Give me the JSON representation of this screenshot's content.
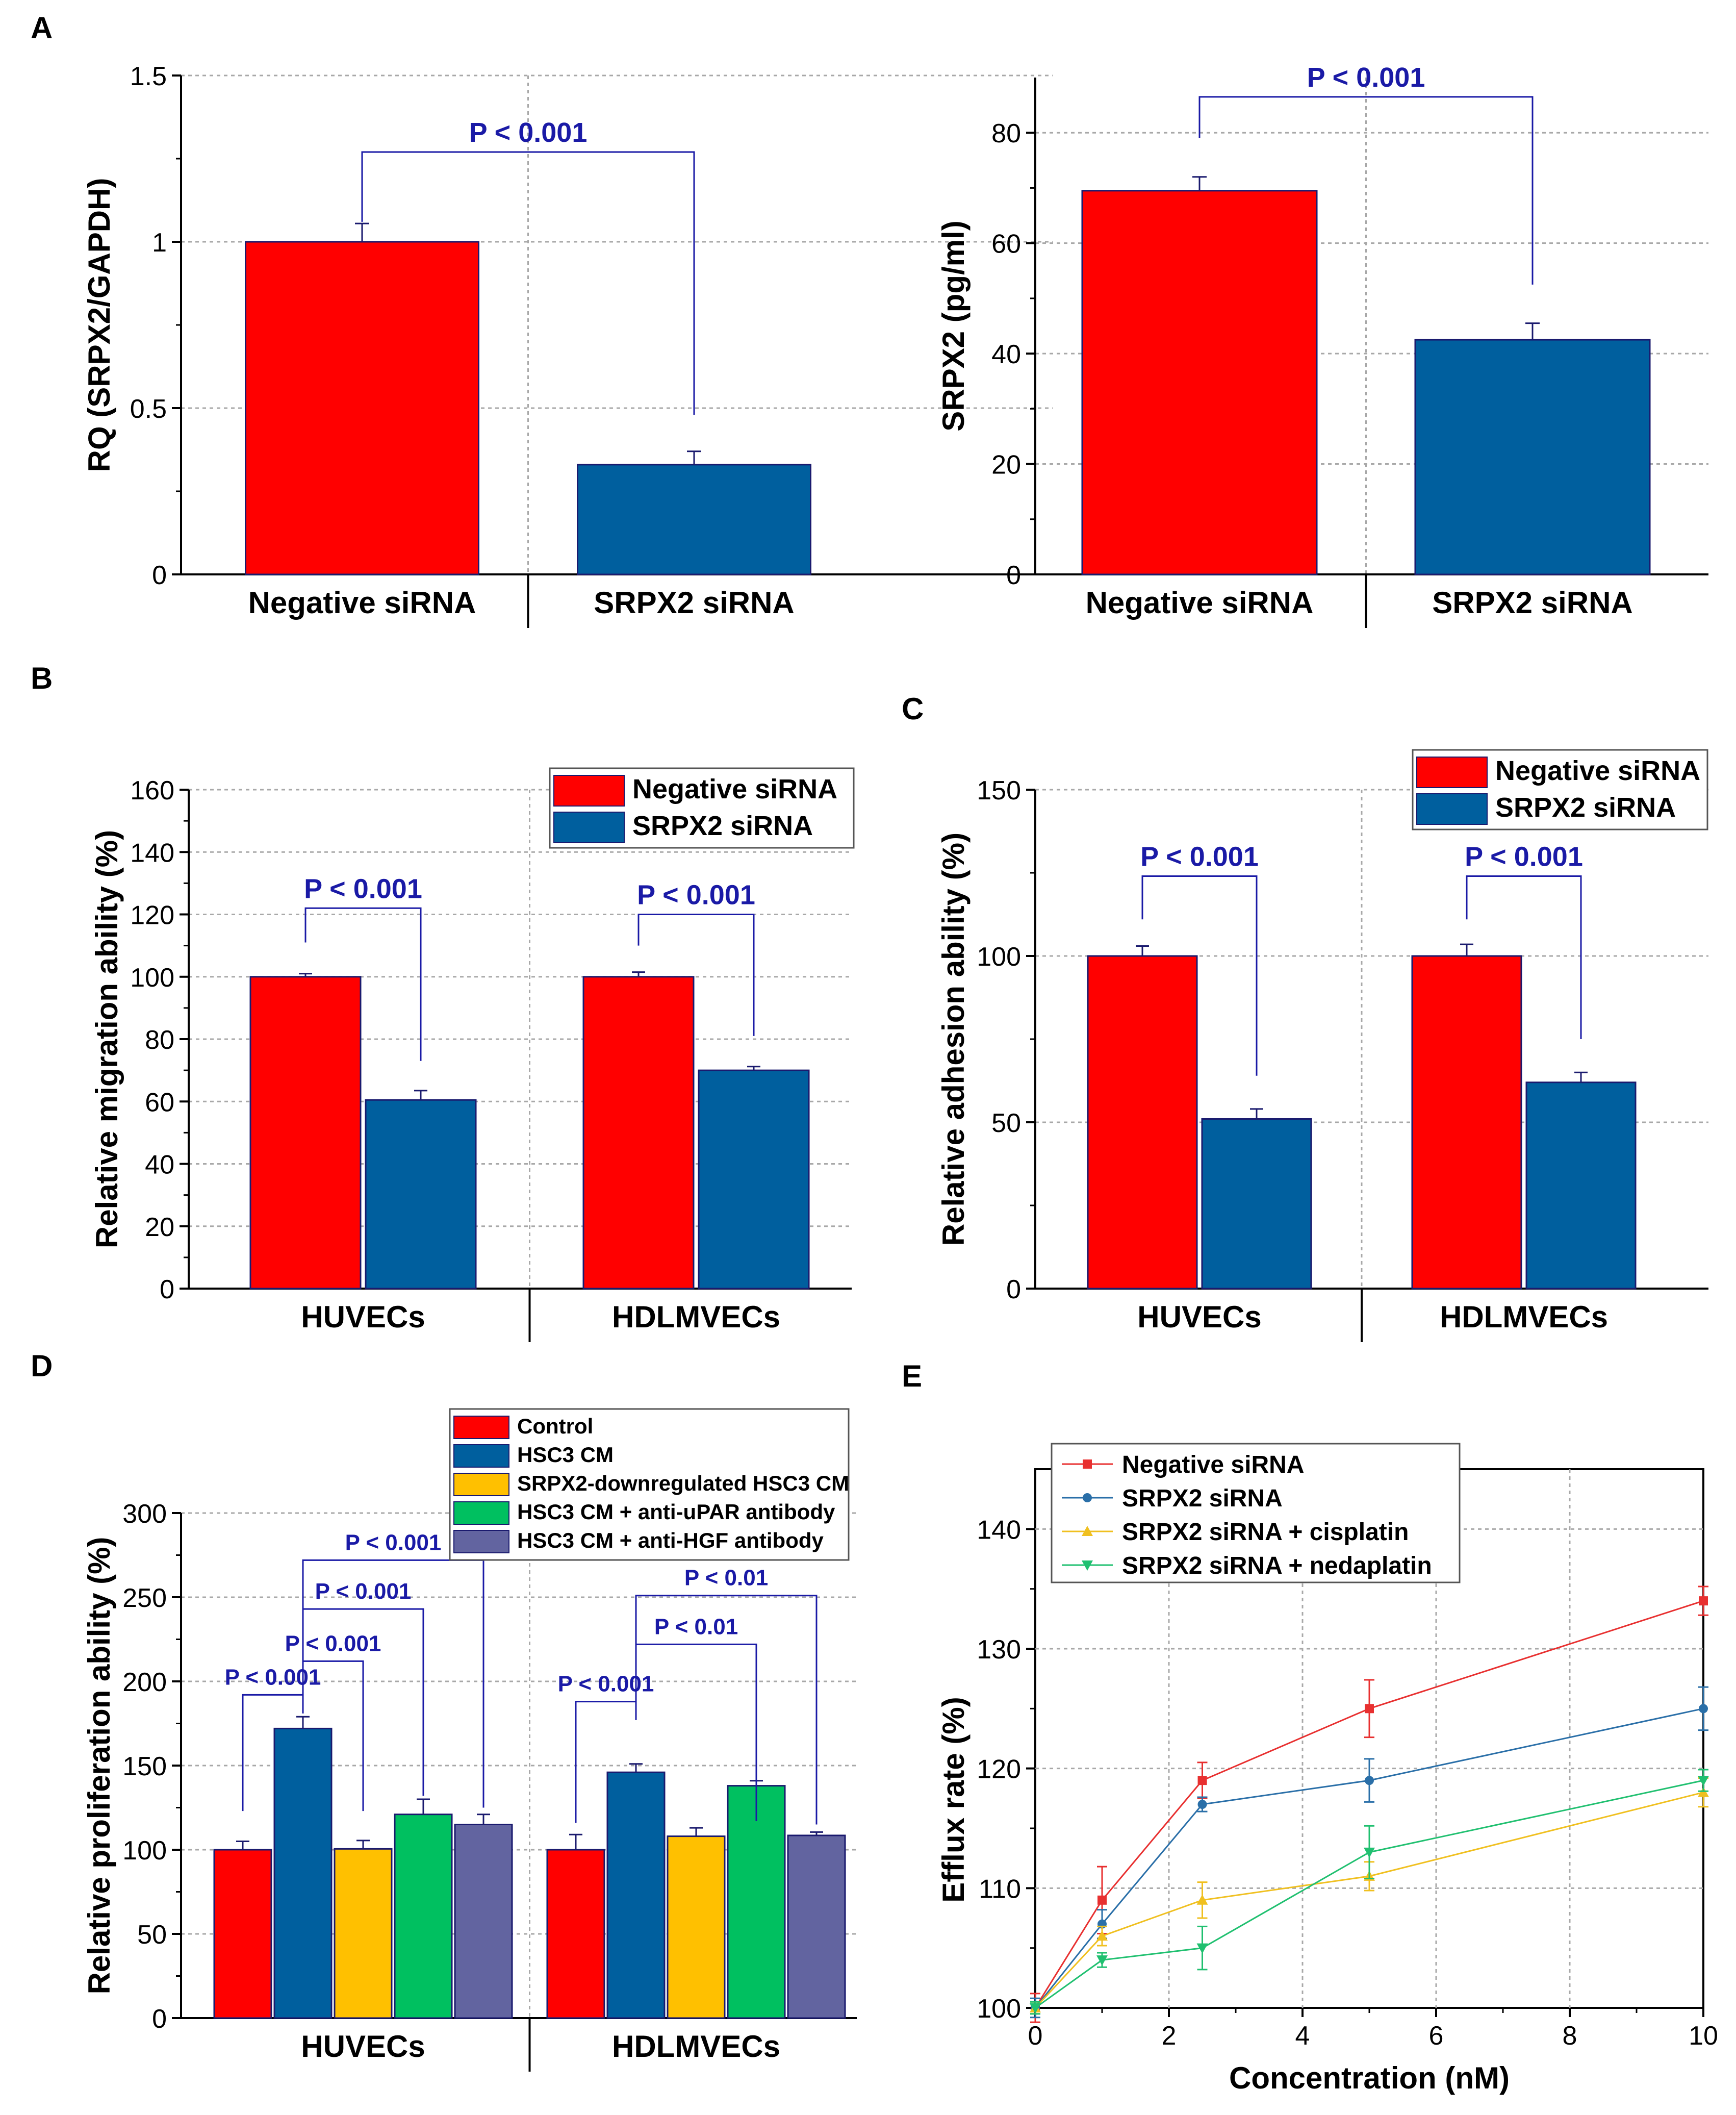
{
  "colors": {
    "red": "#ff0000",
    "blue": "#005f9e",
    "yellow": "#ffc000",
    "green": "#00c060",
    "purple": "#6264a0",
    "annot": "#1a1aa6",
    "axis": "#000000",
    "grid": "#a8a8a8",
    "line_red": "#e83030",
    "line_blue": "#2a6fa8",
    "line_yellow": "#f0c020",
    "line_green": "#20c070"
  },
  "chart_data": [
    {
      "id": "A1",
      "panel_label": "A",
      "type": "bar",
      "categories": [
        "Negative siRNA",
        "SRPX2 siRNA"
      ],
      "series": [
        {
          "name": "",
          "values": [
            1.0,
            0.33
          ],
          "errors": [
            0.055,
            0.04
          ],
          "colors": [
            "red",
            "blue"
          ]
        }
      ],
      "ylabel": "RQ (SRPX2/GAPDH)",
      "xlabel": "",
      "ylim": [
        0,
        1.5
      ],
      "yticks": [
        0,
        0.5,
        1,
        1.5
      ],
      "ytick_labels": [
        "0",
        "0.5",
        "1",
        "1.5"
      ],
      "grid": true,
      "legend": null,
      "annotations": [
        {
          "text": "P < 0.001",
          "from": 0,
          "to": 1,
          "level": 1.27,
          "left_end": 1.06,
          "right_end": 0.48
        }
      ]
    },
    {
      "id": "A2",
      "panel_label": "",
      "type": "bar",
      "categories": [
        "Negative siRNA",
        "SRPX2 siRNA"
      ],
      "series": [
        {
          "name": "",
          "values": [
            69.5,
            42.5
          ],
          "errors": [
            2.5,
            3.0
          ],
          "colors": [
            "red",
            "blue"
          ]
        }
      ],
      "ylabel": "SRPX2 (pg/ml)",
      "xlabel": "",
      "ylim": [
        0,
        90
      ],
      "yticks": [
        0,
        20,
        40,
        60,
        80
      ],
      "ytick_labels": [
        "0",
        "20",
        "40",
        "60",
        "80"
      ],
      "grid": true,
      "legend": null,
      "annotations": [
        {
          "text": "P < 0.001",
          "from": 0,
          "to": 1,
          "level": 86.5,
          "left_end": 79,
          "right_end": 52.5
        }
      ]
    },
    {
      "id": "B",
      "panel_label": "B",
      "type": "bar",
      "categories": [
        "HUVECs",
        "HDLMVECs"
      ],
      "series": [
        {
          "name": "Negative siRNA",
          "values": [
            100,
            100
          ],
          "errors": [
            1.0,
            1.5
          ],
          "color": "red"
        },
        {
          "name": "SRPX2 siRNA",
          "values": [
            60.5,
            70
          ],
          "errors": [
            3.0,
            1.2
          ],
          "color": "blue"
        }
      ],
      "ylabel": "Relative migration ability (%)",
      "xlabel": "",
      "ylim": [
        0,
        160
      ],
      "yticks": [
        0,
        20,
        40,
        60,
        80,
        100,
        120,
        140,
        160
      ],
      "ytick_labels": [
        "0",
        "20",
        "40",
        "60",
        "80",
        "100",
        "120",
        "140",
        "160"
      ],
      "grid": true,
      "legend": "top-right",
      "annotations": [
        {
          "text": "P < 0.001",
          "group": 0,
          "level": 122,
          "left_end": 111,
          "right_end": 73
        },
        {
          "text": "P < 0.001",
          "group": 1,
          "level": 120,
          "left_end": 110,
          "right_end": 81
        }
      ]
    },
    {
      "id": "C",
      "panel_label": "C",
      "type": "bar",
      "categories": [
        "HUVECs",
        "HDLMVECs"
      ],
      "series": [
        {
          "name": "Negative siRNA",
          "values": [
            100,
            100
          ],
          "errors": [
            3.0,
            3.5
          ],
          "color": "red"
        },
        {
          "name": "SRPX2 siRNA",
          "values": [
            51,
            62
          ],
          "errors": [
            3.0,
            3.0
          ],
          "color": "blue"
        }
      ],
      "ylabel": "Relative adhesion ability (%)",
      "xlabel": "",
      "ylim": [
        0,
        150
      ],
      "yticks": [
        0,
        50,
        100,
        150
      ],
      "ytick_labels": [
        "0",
        "50",
        "100",
        "150"
      ],
      "grid": true,
      "legend": "top-right",
      "annotations": [
        {
          "text": "P < 0.001",
          "group": 0,
          "level": 124,
          "left_end": 111,
          "right_end": 64
        },
        {
          "text": "P < 0.001",
          "group": 1,
          "level": 124,
          "left_end": 111,
          "right_end": 75
        }
      ]
    },
    {
      "id": "D",
      "panel_label": "D",
      "type": "bar",
      "categories": [
        "HUVECs",
        "HDLMVECs"
      ],
      "series": [
        {
          "name": "Control",
          "values": [
            100,
            100
          ],
          "errors": [
            5,
            9
          ],
          "color": "red"
        },
        {
          "name": "HSC3 CM",
          "values": [
            172,
            146
          ],
          "errors": [
            7,
            5
          ],
          "color": "blue"
        },
        {
          "name": "SRPX2-downregulated HSC3 CM",
          "values": [
            100.5,
            108
          ],
          "errors": [
            5,
            5
          ],
          "color": "yellow"
        },
        {
          "name": "HSC3 CM + anti-uPAR antibody",
          "values": [
            121,
            138
          ],
          "errors": [
            9,
            3
          ],
          "color": "green"
        },
        {
          "name": "HSC3 CM + anti-HGF antibody",
          "values": [
            115,
            108.5
          ],
          "errors": [
            6,
            2
          ],
          "color": "purple"
        }
      ],
      "ylabel": "Relative proliferation ability (%)",
      "xlabel": "",
      "ylim": [
        0,
        300
      ],
      "yticks": [
        0,
        50,
        100,
        150,
        200,
        250,
        300
      ],
      "ytick_labels": [
        "0",
        "50",
        "100",
        "150",
        "200",
        "250",
        "300"
      ],
      "grid": true,
      "legend": "top-right",
      "annotations": [
        {
          "text": "P < 0.001",
          "group": 0,
          "from": 0,
          "to": 1,
          "level": 192,
          "left_end": 123,
          "right_end": 181
        },
        {
          "text": "P < 0.001",
          "group": 0,
          "from": 1,
          "to": 2,
          "level": 212,
          "left_end": 181,
          "right_end": 123
        },
        {
          "text": "P < 0.001",
          "group": 0,
          "from": 1,
          "to": 3,
          "level": 243,
          "left_end": 212,
          "right_end": 132
        },
        {
          "text": "P < 0.001",
          "group": 0,
          "from": 1,
          "to": 4,
          "level": 272,
          "left_end": 243,
          "right_end": 125
        },
        {
          "text": "P < 0.001",
          "group": 1,
          "from": 0,
          "to": 1,
          "level": 188,
          "left_end": 116,
          "right_end": 177
        },
        {
          "text": "P < 0.01",
          "group": 1,
          "from": 1,
          "to": 3,
          "level": 222,
          "left_end": 188,
          "right_end": 117
        },
        {
          "text": "P < 0.01",
          "group": 1,
          "from": 1,
          "to": 4,
          "level": 251,
          "left_end": 222,
          "right_end": 115
        }
      ]
    },
    {
      "id": "E",
      "panel_label": "E",
      "type": "line",
      "x": [
        0,
        1,
        2.5,
        5,
        10
      ],
      "series": [
        {
          "name": "Negative siRNA",
          "values": [
            100,
            109,
            119,
            125,
            134
          ],
          "errors": [
            1.2,
            2.8,
            1.5,
            2.4,
            1.2
          ],
          "color": "line_red",
          "marker": "square"
        },
        {
          "name": "SRPX2 siRNA",
          "values": [
            100,
            107,
            117,
            119,
            125
          ],
          "errors": [
            0.8,
            1.2,
            0.6,
            1.8,
            1.8
          ],
          "color": "line_blue",
          "marker": "circle"
        },
        {
          "name": "SRPX2 siRNA + cisplatin",
          "values": [
            100,
            106,
            109,
            111,
            118
          ],
          "errors": [
            0.5,
            0.8,
            1.5,
            1.2,
            1.2
          ],
          "color": "line_yellow",
          "marker": "triangle-up"
        },
        {
          "name": "SRPX2 siRNA + nedaplatin",
          "values": [
            100,
            104,
            105,
            113,
            119
          ],
          "errors": [
            0.5,
            0.6,
            1.8,
            2.2,
            0.9
          ],
          "color": "line_green",
          "marker": "triangle-down"
        }
      ],
      "xlabel": "Concentration (nM)",
      "ylabel": "Efflux rate (%)",
      "xlim": [
        0,
        10
      ],
      "ylim": [
        100,
        145
      ],
      "xticks": [
        0,
        2,
        4,
        6,
        8,
        10
      ],
      "xtick_labels": [
        "0",
        "2",
        "4",
        "6",
        "8",
        "10"
      ],
      "yticks": [
        100,
        110,
        120,
        130,
        140
      ],
      "ytick_labels": [
        "100",
        "110",
        "120",
        "130",
        "140"
      ],
      "grid": true,
      "legend": "top-left"
    }
  ]
}
